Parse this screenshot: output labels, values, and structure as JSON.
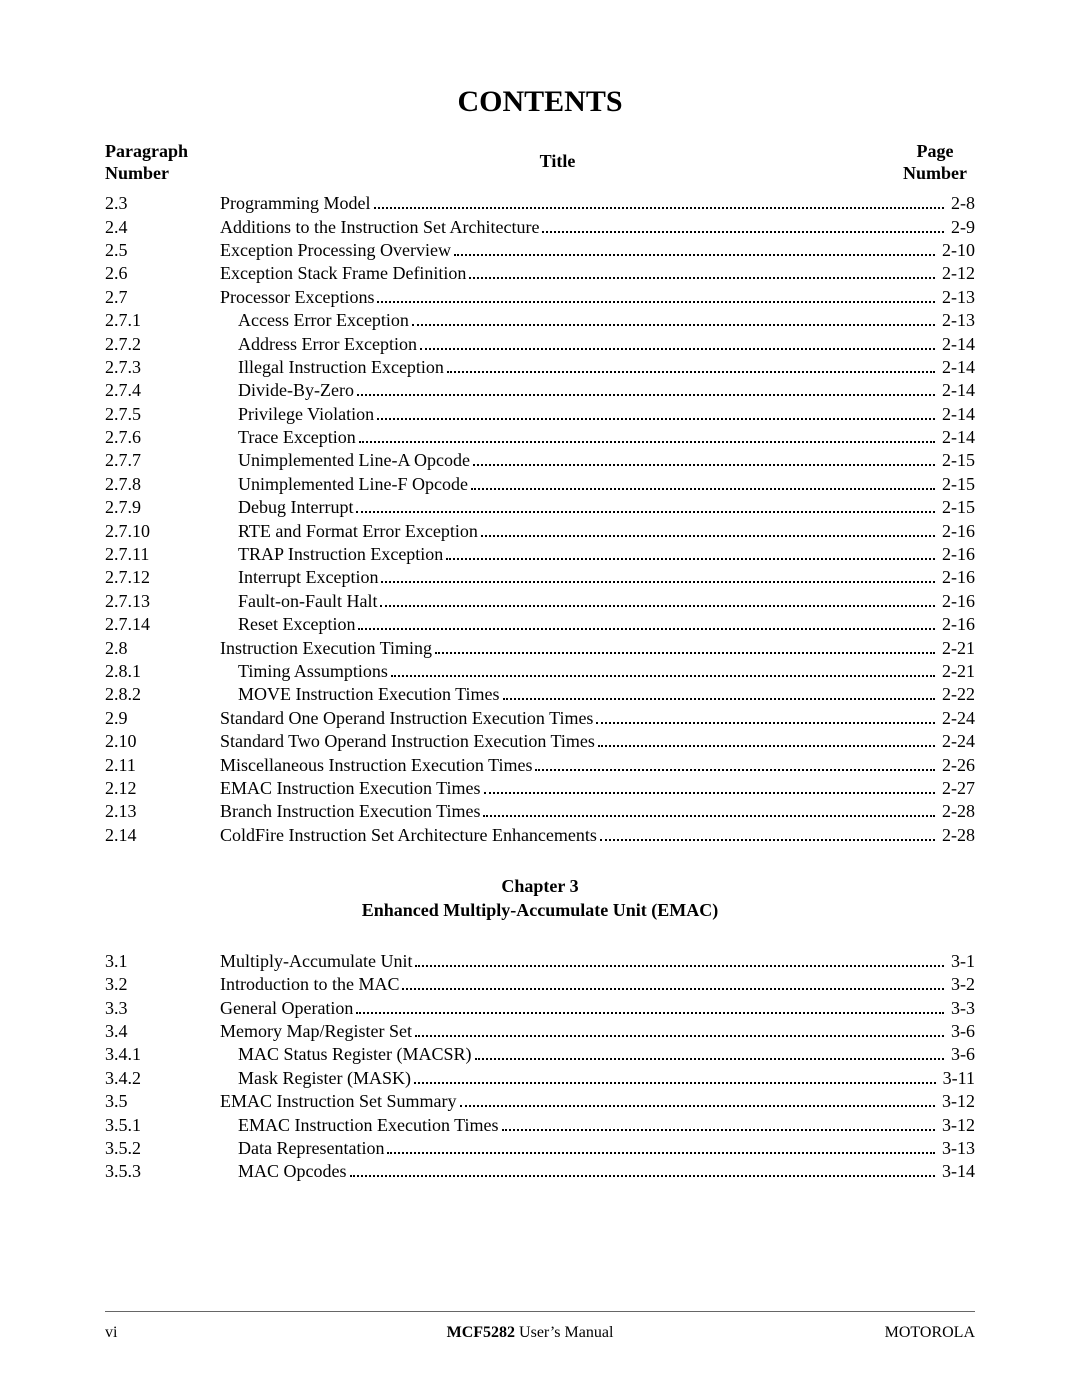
{
  "heading": "CONTENTS",
  "columns": {
    "para_l1": "Paragraph",
    "para_l2": "Number",
    "title": "Title",
    "page_l1": "Page",
    "page_l2": "Number"
  },
  "chapter": {
    "line1": "Chapter 3",
    "line2": "Enhanced Multiply-Accumulate Unit (EMAC)"
  },
  "entries1": [
    {
      "p": "2.3",
      "t": "Programming Model",
      "pg": "2-8",
      "i": 0
    },
    {
      "p": "2.4",
      "t": "Additions to the Instruction Set Architecture",
      "pg": "2-9",
      "i": 0
    },
    {
      "p": "2.5",
      "t": "Exception Processing Overview",
      "pg": "2-10",
      "i": 0
    },
    {
      "p": "2.6",
      "t": "Exception Stack Frame Definition",
      "pg": "2-12",
      "i": 0
    },
    {
      "p": "2.7",
      "t": "Processor Exceptions",
      "pg": "2-13",
      "i": 0
    },
    {
      "p": "2.7.1",
      "t": "Access Error Exception",
      "pg": "2-13",
      "i": 1
    },
    {
      "p": "2.7.2",
      "t": "Address Error Exception",
      "pg": "2-14",
      "i": 1
    },
    {
      "p": "2.7.3",
      "t": "Illegal Instruction Exception",
      "pg": "2-14",
      "i": 1
    },
    {
      "p": "2.7.4",
      "t": "Divide-By-Zero",
      "pg": "2-14",
      "i": 1
    },
    {
      "p": "2.7.5",
      "t": "Privilege Violation",
      "pg": "2-14",
      "i": 1
    },
    {
      "p": "2.7.6",
      "t": "Trace Exception",
      "pg": "2-14",
      "i": 1
    },
    {
      "p": "2.7.7",
      "t": "Unimplemented Line-A Opcode",
      "pg": "2-15",
      "i": 1
    },
    {
      "p": "2.7.8",
      "t": "Unimplemented Line-F Opcode",
      "pg": "2-15",
      "i": 1
    },
    {
      "p": "2.7.9",
      "t": "Debug Interrupt",
      "pg": "2-15",
      "i": 1
    },
    {
      "p": "2.7.10",
      "t": "RTE and Format Error Exception",
      "pg": "2-16",
      "i": 1
    },
    {
      "p": "2.7.11",
      "t": "TRAP Instruction Exception",
      "pg": "2-16",
      "i": 1
    },
    {
      "p": "2.7.12",
      "t": "Interrupt Exception",
      "pg": "2-16",
      "i": 1
    },
    {
      "p": "2.7.13",
      "t": "Fault-on-Fault Halt",
      "pg": "2-16",
      "i": 1
    },
    {
      "p": "2.7.14",
      "t": "Reset Exception",
      "pg": "2-16",
      "i": 1
    },
    {
      "p": "2.8",
      "t": "Instruction Execution Timing",
      "pg": "2-21",
      "i": 0
    },
    {
      "p": "2.8.1",
      "t": "Timing Assumptions",
      "pg": "2-21",
      "i": 1
    },
    {
      "p": "2.8.2",
      "t": "MOVE Instruction Execution Times",
      "pg": "2-22",
      "i": 1
    },
    {
      "p": "2.9",
      "t": "Standard One Operand Instruction Execution Times",
      "pg": "2-24",
      "i": 0
    },
    {
      "p": "2.10",
      "t": "Standard Two Operand Instruction Execution Times",
      "pg": "2-24",
      "i": 0
    },
    {
      "p": "2.11",
      "t": "Miscellaneous Instruction Execution Times",
      "pg": "2-26",
      "i": 0
    },
    {
      "p": "2.12",
      "t": "EMAC Instruction Execution Times",
      "pg": "2-27",
      "i": 0
    },
    {
      "p": "2.13",
      "t": "Branch Instruction Execution Times",
      "pg": "2-28",
      "i": 0
    },
    {
      "p": "2.14",
      "t": "ColdFire Instruction Set Architecture Enhancements",
      "pg": "2-28",
      "i": 0
    }
  ],
  "entries2": [
    {
      "p": "3.1",
      "t": "Multiply-Accumulate Unit",
      "pg": "3-1",
      "i": 0
    },
    {
      "p": "3.2",
      "t": "Introduction to the MAC",
      "pg": "3-2",
      "i": 0
    },
    {
      "p": "3.3",
      "t": "General Operation",
      "pg": "3-3",
      "i": 0
    },
    {
      "p": "3.4",
      "t": "Memory Map/Register Set",
      "pg": "3-6",
      "i": 0
    },
    {
      "p": "3.4.1",
      "t": "MAC Status Register (MACSR)",
      "pg": "3-6",
      "i": 1
    },
    {
      "p": "3.4.2",
      "t": "Mask Register (MASK)",
      "pg": "3-11",
      "i": 1
    },
    {
      "p": "3.5",
      "t": "EMAC Instruction Set Summary",
      "pg": "3-12",
      "i": 0
    },
    {
      "p": "3.5.1",
      "t": "EMAC Instruction Execution Times",
      "pg": "3-12",
      "i": 1
    },
    {
      "p": "3.5.2",
      "t": "Data Representation",
      "pg": "3-13",
      "i": 1
    },
    {
      "p": "3.5.3",
      "t": "MAC Opcodes",
      "pg": "3-14",
      "i": 1
    }
  ],
  "footer": {
    "left": "vi",
    "center_bold": "MCF5282 ",
    "center_rest": "User’s Manual",
    "right": "MOTOROLA"
  }
}
